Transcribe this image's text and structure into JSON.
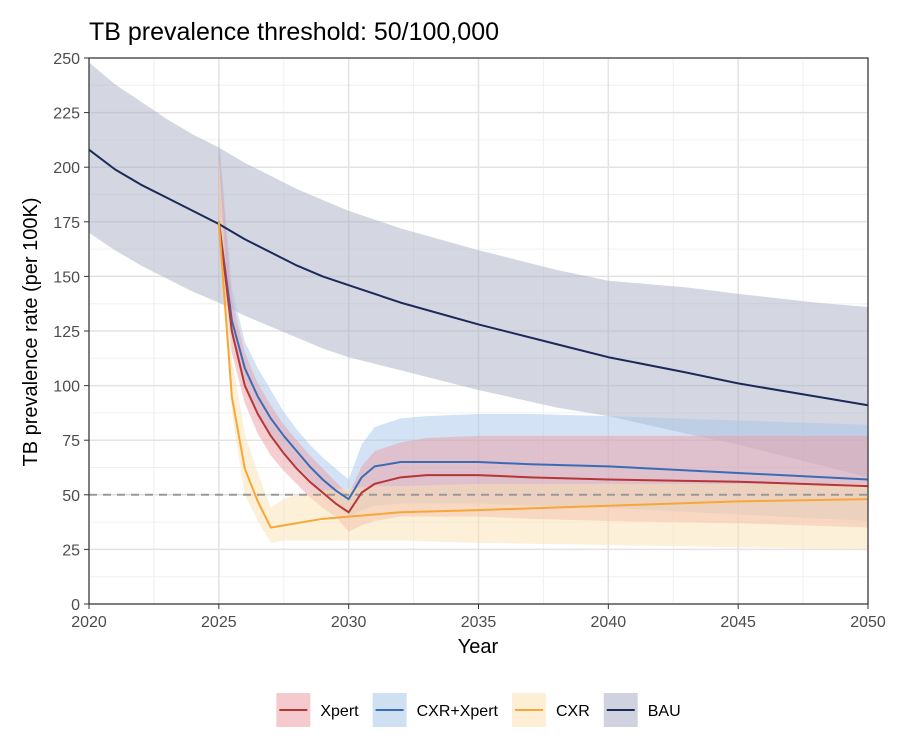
{
  "chart_data": {
    "type": "line",
    "title": "TB prevalence threshold: 50/100,000",
    "xlabel": "Year",
    "ylabel": "TB prevalence rate (per 100K)",
    "xlim": [
      2020,
      2050
    ],
    "ylim": [
      0,
      250
    ],
    "x_ticks": [
      2020,
      2025,
      2030,
      2035,
      2040,
      2045,
      2050
    ],
    "y_ticks": [
      0,
      25,
      50,
      75,
      100,
      125,
      150,
      175,
      200,
      225,
      250
    ],
    "threshold": 50,
    "grid": true,
    "legend_position": "bottom",
    "series": [
      {
        "name": "BAU",
        "color": "#1b2a5b",
        "fill": "#a9aec4",
        "x": [
          2020,
          2021,
          2022,
          2023,
          2024,
          2025,
          2026,
          2027,
          2028,
          2029,
          2030,
          2032,
          2035,
          2038,
          2040,
          2043,
          2045,
          2048,
          2050
        ],
        "y": [
          208,
          199,
          192,
          186,
          180,
          174,
          167,
          161,
          155,
          150,
          146,
          138,
          128,
          119,
          113,
          106,
          101,
          95,
          91
        ],
        "lower": [
          170,
          162,
          155,
          149,
          143,
          138,
          132,
          127,
          122,
          117,
          113,
          107,
          98,
          90,
          86,
          78,
          73,
          64,
          58
        ],
        "upper": [
          248,
          238,
          230,
          222,
          215,
          209,
          202,
          196,
          190,
          185,
          180,
          172,
          162,
          153,
          148,
          145,
          142,
          138,
          136
        ]
      },
      {
        "name": "CXR+Xpert",
        "color": "#3a6cb6",
        "fill": "#a7c6ea",
        "x": [
          2025,
          2025.5,
          2026,
          2026.5,
          2027,
          2027.5,
          2028,
          2028.5,
          2029,
          2029.5,
          2030,
          2030.5,
          2031,
          2032,
          2033,
          2035,
          2037,
          2040,
          2045,
          2050
        ],
        "y": [
          175,
          130,
          108,
          95,
          85,
          77,
          70,
          63,
          57,
          52,
          48,
          58,
          63,
          65,
          65,
          65,
          64,
          63,
          60,
          57
        ],
        "lower": [
          172,
          122,
          100,
          87,
          77,
          70,
          63,
          57,
          51,
          46,
          40,
          43,
          45,
          46,
          46,
          46,
          45,
          44,
          41,
          38
        ],
        "upper": [
          215,
          145,
          120,
          108,
          98,
          88,
          80,
          73,
          67,
          62,
          57,
          73,
          81,
          85,
          86,
          87,
          87,
          86,
          84,
          82
        ]
      },
      {
        "name": "Xpert",
        "color": "#b83536",
        "fill": "#eb9ea5",
        "x": [
          2025,
          2025.5,
          2026,
          2026.5,
          2027,
          2027.5,
          2028,
          2028.5,
          2029,
          2029.5,
          2030,
          2030.5,
          2031,
          2032,
          2033,
          2035,
          2037,
          2040,
          2045,
          2050
        ],
        "y": [
          175,
          125,
          100,
          87,
          77,
          69,
          62,
          56,
          51,
          46,
          42,
          51,
          55,
          58,
          59,
          59,
          58,
          57,
          56,
          54
        ],
        "lower": [
          172,
          115,
          92,
          78,
          68,
          61,
          55,
          49,
          44,
          40,
          33,
          36,
          38,
          40,
          40,
          40,
          39,
          38,
          37,
          35
        ],
        "upper": [
          210,
          140,
          115,
          101,
          91,
          82,
          75,
          68,
          62,
          56,
          50,
          63,
          70,
          74,
          76,
          77,
          77,
          77,
          77,
          77
        ]
      },
      {
        "name": "CXR",
        "color": "#f6a737",
        "fill": "#fce1b2",
        "x": [
          2025,
          2025.5,
          2026,
          2026.5,
          2027,
          2027.5,
          2028,
          2029,
          2030,
          2031,
          2032,
          2035,
          2040,
          2045,
          2050
        ],
        "y": [
          175,
          95,
          62,
          47,
          35,
          36,
          37,
          39,
          40,
          41,
          42,
          43,
          45,
          47,
          48
        ],
        "lower": [
          172,
          88,
          50,
          38,
          28,
          29,
          29,
          29,
          29,
          29,
          29,
          28,
          27,
          26,
          25
        ],
        "upper": [
          205,
          112,
          78,
          60,
          44,
          48,
          50,
          52,
          53,
          54,
          54,
          55,
          55,
          55,
          55
        ]
      }
    ],
    "legend_order": [
      "Xpert",
      "CXR+Xpert",
      "CXR",
      "BAU"
    ]
  }
}
